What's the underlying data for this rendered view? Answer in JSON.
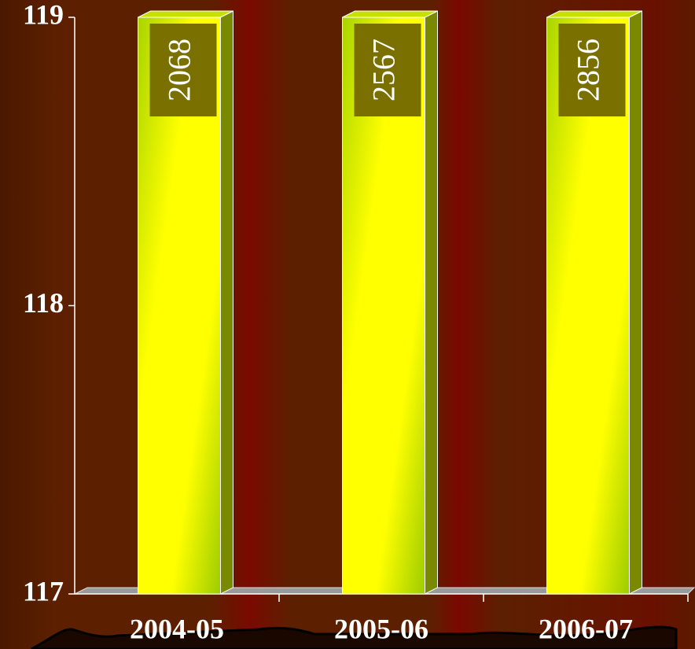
{
  "chart_data": {
    "type": "bar",
    "categories": [
      "2004-05",
      "2005-06",
      "2006-07"
    ],
    "values": [
      2068,
      2567,
      2856
    ],
    "color": "#ffff00",
    "ylim": [
      117,
      119
    ],
    "yticks": [
      117,
      118,
      119
    ]
  }
}
